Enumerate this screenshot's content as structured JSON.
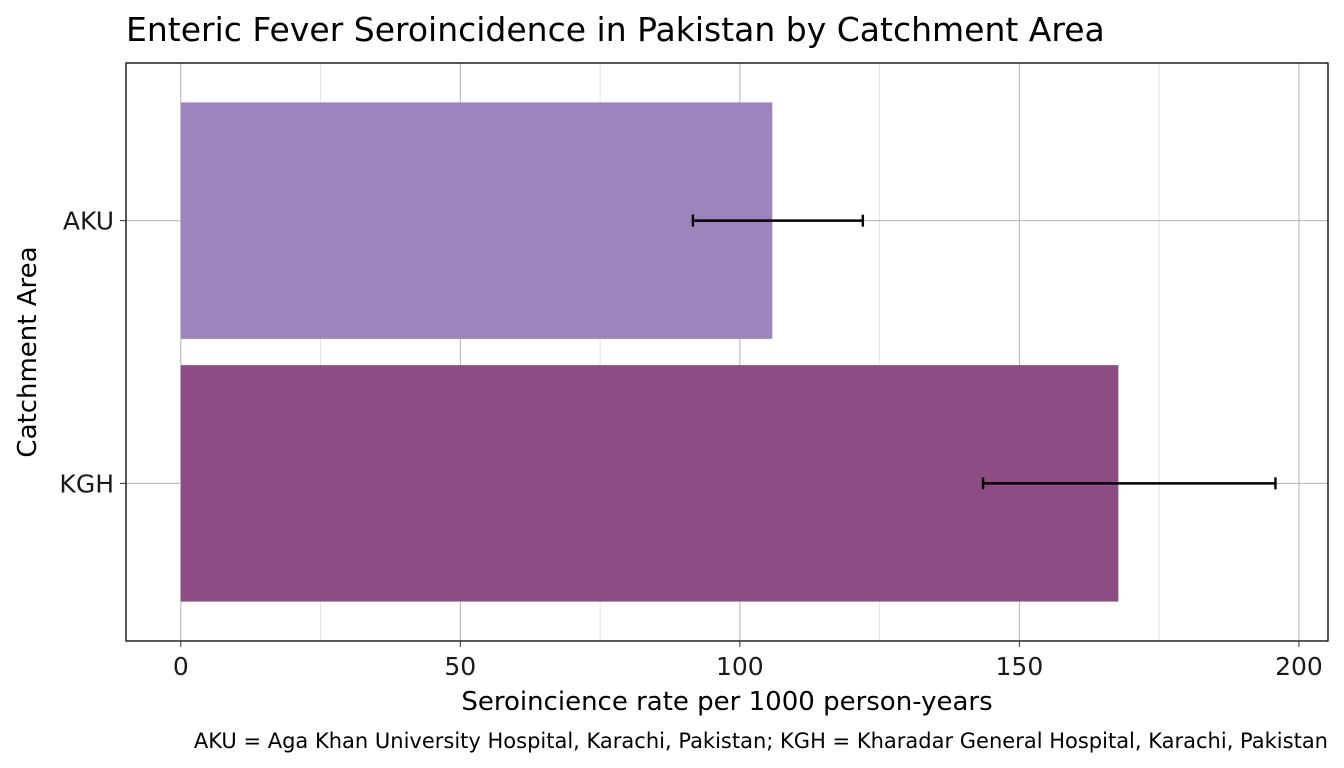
{
  "chart_data": {
    "type": "bar",
    "orientation": "horizontal",
    "title": "Enteric Fever Seroincidence in Pakistan by Catchment Area",
    "xlabel": "Seroincience rate per 1000 person-years",
    "ylabel": "Catchment Area",
    "caption": "AKU = Aga Khan University Hospital, Karachi, Pakistan; KGH = Kharadar General Hospital, Karachi, Pakistan",
    "categories": [
      "AKU",
      "KGH"
    ],
    "values": [
      105.8,
      167.7
    ],
    "error_lower": [
      91.6,
      143.5
    ],
    "error_upper": [
      122.0,
      195.8
    ],
    "colors": [
      "#9c84bc",
      "#8d4c84"
    ],
    "xlim": [
      -9.8,
      205.2
    ],
    "xticks": [
      0,
      50,
      100,
      150,
      200
    ],
    "xtick_labels": [
      "0",
      "50",
      "100",
      "150",
      "200"
    ],
    "grid": true,
    "legend": "none"
  }
}
